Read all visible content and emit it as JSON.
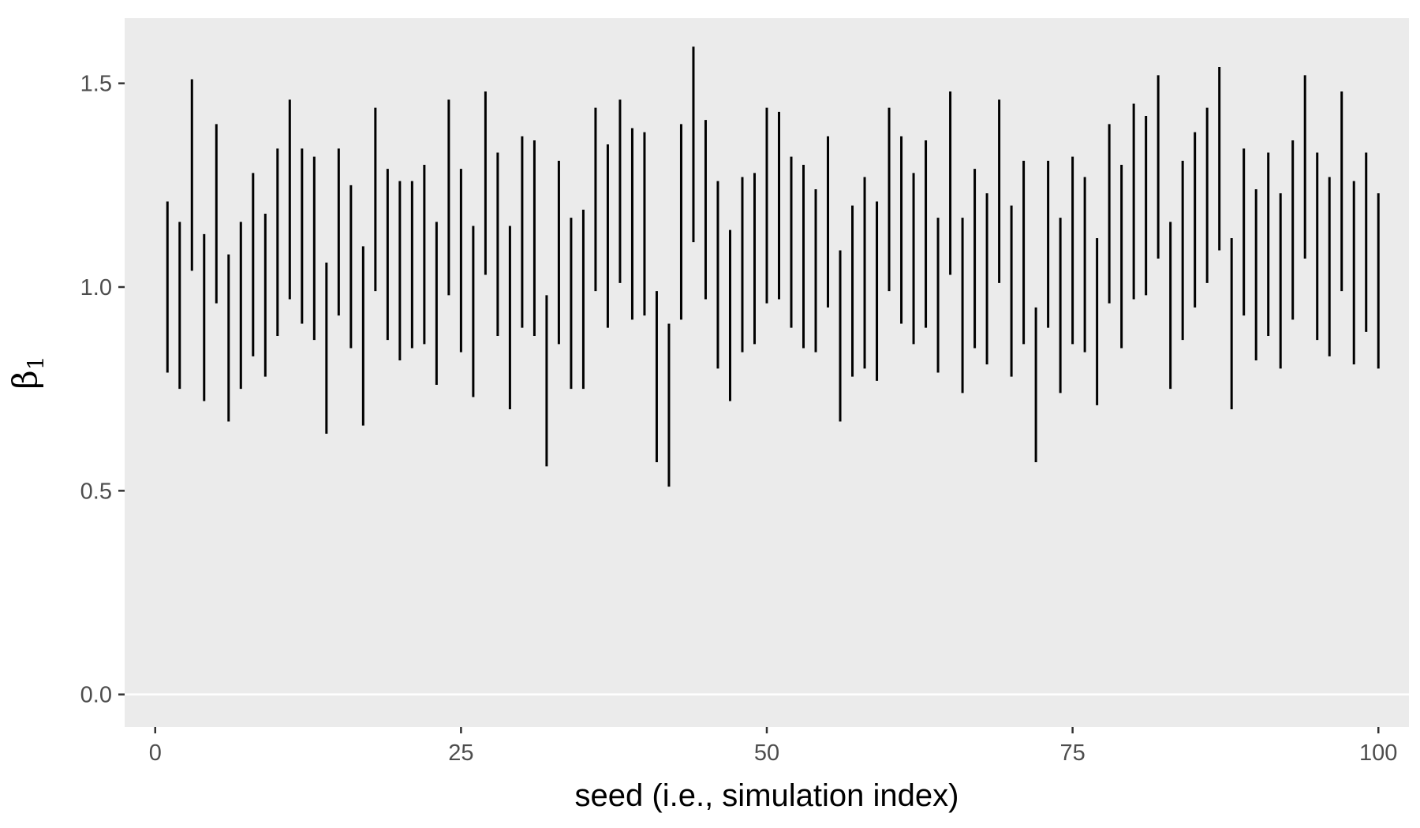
{
  "chart_data": {
    "type": "errorbar",
    "xlabel": "seed (i.e., simulation index)",
    "ylabel": {
      "symbol": "β",
      "subscript": "1"
    },
    "xlim": [
      -2.5,
      102.5
    ],
    "ylim": [
      -0.08,
      1.66
    ],
    "x_ticks": [
      0,
      25,
      50,
      75,
      100
    ],
    "x_tick_labels": [
      "0",
      "25",
      "50",
      "75",
      "100"
    ],
    "y_ticks": [
      0.0,
      0.5,
      1.0,
      1.5
    ],
    "y_tick_labels": [
      "0.0",
      "0.5",
      "1.0",
      "1.5"
    ],
    "hline": 0,
    "grid": false,
    "colors": {
      "panel": "#ebebeb",
      "bar": "#000000",
      "hline": "#ffffff",
      "tick": "#333333"
    },
    "x": [
      1,
      2,
      3,
      4,
      5,
      6,
      7,
      8,
      9,
      10,
      11,
      12,
      13,
      14,
      15,
      16,
      17,
      18,
      19,
      20,
      21,
      22,
      23,
      24,
      25,
      26,
      27,
      28,
      29,
      30,
      31,
      32,
      33,
      34,
      35,
      36,
      37,
      38,
      39,
      40,
      41,
      42,
      43,
      44,
      45,
      46,
      47,
      48,
      49,
      50,
      51,
      52,
      53,
      54,
      55,
      56,
      57,
      58,
      59,
      60,
      61,
      62,
      63,
      64,
      65,
      66,
      67,
      68,
      69,
      70,
      71,
      72,
      73,
      74,
      75,
      76,
      77,
      78,
      79,
      80,
      81,
      82,
      83,
      84,
      85,
      86,
      87,
      88,
      89,
      90,
      91,
      92,
      93,
      94,
      95,
      96,
      97,
      98,
      99,
      100
    ],
    "lower": [
      0.79,
      0.75,
      1.04,
      0.72,
      0.96,
      0.67,
      0.75,
      0.83,
      0.78,
      0.88,
      0.97,
      0.91,
      0.87,
      0.64,
      0.93,
      0.85,
      0.66,
      0.99,
      0.87,
      0.82,
      0.85,
      0.86,
      0.76,
      0.98,
      0.84,
      0.73,
      1.03,
      0.88,
      0.7,
      0.9,
      0.88,
      0.56,
      0.86,
      0.75,
      0.75,
      0.99,
      0.9,
      1.01,
      0.92,
      0.93,
      0.57,
      0.51,
      0.92,
      1.11,
      0.97,
      0.8,
      0.72,
      0.84,
      0.86,
      0.96,
      0.97,
      0.9,
      0.85,
      0.84,
      0.95,
      0.67,
      0.78,
      0.8,
      0.77,
      0.99,
      0.91,
      0.86,
      0.9,
      0.79,
      1.03,
      0.74,
      0.85,
      0.81,
      1.01,
      0.78,
      0.86,
      0.57,
      0.9,
      0.74,
      0.86,
      0.84,
      0.71,
      0.96,
      0.85,
      0.97,
      0.98,
      1.07,
      0.75,
      0.87,
      0.95,
      1.01,
      1.09,
      0.7,
      0.93,
      0.82,
      0.88,
      0.8,
      0.92,
      1.07,
      0.87,
      0.83,
      0.99,
      0.81,
      0.89,
      0.8
    ],
    "upper": [
      1.21,
      1.16,
      1.51,
      1.13,
      1.4,
      1.08,
      1.16,
      1.28,
      1.18,
      1.34,
      1.46,
      1.34,
      1.32,
      1.06,
      1.34,
      1.25,
      1.1,
      1.44,
      1.29,
      1.26,
      1.26,
      1.3,
      1.16,
      1.46,
      1.29,
      1.15,
      1.48,
      1.33,
      1.15,
      1.37,
      1.36,
      0.98,
      1.31,
      1.17,
      1.19,
      1.44,
      1.35,
      1.46,
      1.39,
      1.38,
      0.99,
      0.91,
      1.4,
      1.59,
      1.41,
      1.26,
      1.14,
      1.27,
      1.28,
      1.44,
      1.43,
      1.32,
      1.3,
      1.24,
      1.37,
      1.09,
      1.2,
      1.27,
      1.21,
      1.44,
      1.37,
      1.28,
      1.36,
      1.17,
      1.48,
      1.17,
      1.29,
      1.23,
      1.46,
      1.2,
      1.31,
      0.95,
      1.31,
      1.17,
      1.32,
      1.27,
      1.12,
      1.4,
      1.3,
      1.45,
      1.42,
      1.52,
      1.16,
      1.31,
      1.38,
      1.44,
      1.54,
      1.12,
      1.34,
      1.24,
      1.33,
      1.23,
      1.36,
      1.52,
      1.33,
      1.27,
      1.48,
      1.26,
      1.33,
      1.23
    ]
  }
}
